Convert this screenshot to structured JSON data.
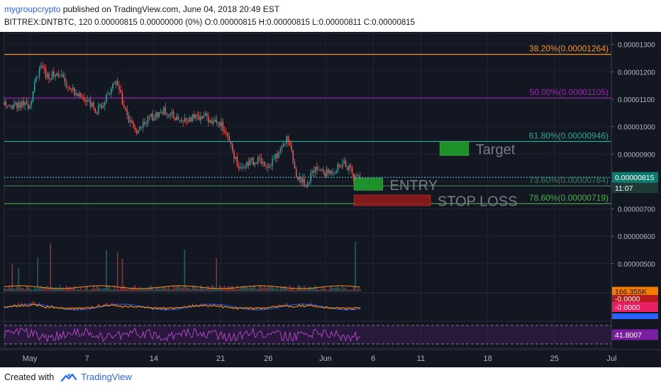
{
  "header": {
    "username": "mygroupcrypto",
    "published_text": " published on TradingView.com, June 04, 2018 20:49 EST",
    "symbol_line": "BITTREX:DNTBTC, 120  0.00000815  0.00000000 (0%)  O:0.00000815  H:0.00000815  L:0.00000811  C:0.00000815"
  },
  "footer": {
    "created_with": "Created with",
    "brand": "TradingView"
  },
  "colors": {
    "background": "#131722",
    "fib_38": "#f7931a",
    "fib_50": "#9c27b0",
    "fib_61": "#26a69a",
    "fib_78": "#4caf50",
    "bull": "#26a69a",
    "bear": "#ef5350",
    "target_zone": "#1e9e2a",
    "entry_zone": "#1e9e2a",
    "stop_zone": "#8e1a1a",
    "price_badge": "#0b7b6e",
    "rsi_badge": "#7b1fa2",
    "volume_badge": "#f57c00",
    "macd_badge": "#e91e63"
  },
  "chart_data": {
    "type": "candlestick",
    "symbol": "BITTREX:DNTBTC",
    "interval": "120",
    "y_axis": {
      "min": 4.4e-06,
      "max": 1.32e-05,
      "ticks": [
        "0.00001300",
        "0.00001200",
        "0.00001100",
        "0.00001000",
        "0.00000900",
        "0.00000800",
        "0.00000700",
        "0.00000600",
        "0.00000500"
      ]
    },
    "x_axis": {
      "labels": [
        "May",
        "7",
        "14",
        "21",
        "26",
        "Jun",
        "6",
        "11",
        "18",
        "25",
        "Jul"
      ]
    },
    "price_path": [
      {
        "date": "May 1",
        "price": 1.08e-05
      },
      {
        "date": "May 2",
        "price": 1.22e-05
      },
      {
        "date": "May 3",
        "price": 1.18e-05
      },
      {
        "date": "May 4",
        "price": 1.2e-05
      },
      {
        "date": "May 5",
        "price": 1.15e-05
      },
      {
        "date": "May 6",
        "price": 1.12e-05
      },
      {
        "date": "May 8",
        "price": 1.06e-05
      },
      {
        "date": "May 9",
        "price": 1.1e-05
      },
      {
        "date": "May 10",
        "price": 1.18e-05
      },
      {
        "date": "May 11",
        "price": 1.05e-05
      },
      {
        "date": "May 12",
        "price": 9.8e-06
      },
      {
        "date": "May 13",
        "price": 1.02e-05
      },
      {
        "date": "May 15",
        "price": 1.06e-05
      },
      {
        "date": "May 17",
        "price": 1.02e-05
      },
      {
        "date": "May 19",
        "price": 1.04e-05
      },
      {
        "date": "May 21",
        "price": 1.01e-05
      },
      {
        "date": "May 22",
        "price": 9.3e-06
      },
      {
        "date": "May 23",
        "price": 8.5e-06
      },
      {
        "date": "May 24",
        "price": 8.7e-06
      },
      {
        "date": "May 25",
        "price": 8.8e-06
      },
      {
        "date": "May 26",
        "price": 8.6e-06
      },
      {
        "date": "May 27",
        "price": 9e-06
      },
      {
        "date": "May 28",
        "price": 9.6e-06
      },
      {
        "date": "May 29",
        "price": 8.2e-06
      },
      {
        "date": "May 30",
        "price": 7.9e-06
      },
      {
        "date": "May 31",
        "price": 8.5e-06
      },
      {
        "date": "Jun 1",
        "price": 8.3e-06
      },
      {
        "date": "Jun 2",
        "price": 8.45e-06
      },
      {
        "date": "Jun 3",
        "price": 8.7e-06
      },
      {
        "date": "Jun 4",
        "price": 8.15e-06
      }
    ],
    "fib_levels": [
      {
        "label": "38.20%(0.00001264)",
        "value": 1.264e-05,
        "color": "#f7931a"
      },
      {
        "label": "50.00%(0.00001105)",
        "value": 1.105e-05,
        "color": "#9c27b0"
      },
      {
        "label": "61.80%(0.00000946)",
        "value": 9.46e-06,
        "color": "#26a69a"
      },
      {
        "label": "73.60%(0.00000784)",
        "value": 7.84e-06,
        "color": "#3d7a5a"
      },
      {
        "label": "78.60%(0.00000719)",
        "value": 7.19e-06,
        "color": "#4caf50"
      }
    ],
    "annotations": [
      {
        "label": "Target",
        "date_from": "Jun 13",
        "date_to": "Jun 16",
        "low": 8.95e-06,
        "high": 9.45e-06,
        "color": "#1e9e2a"
      },
      {
        "label": "ENTRY",
        "date_from": "Jun 4",
        "date_to": "Jun 7",
        "low": 7.68e-06,
        "high": 8.12e-06,
        "color": "#1e9e2a"
      },
      {
        "label": "STOP LOSS",
        "date_from": "Jun 4",
        "date_to": "Jun 12",
        "low": 7.12e-06,
        "high": 7.5e-06,
        "color": "#8e1a1a"
      }
    ],
    "last_price": {
      "value": "0.00000815",
      "countdown": "11:07"
    },
    "indicators": {
      "volume_label": "166.355K",
      "macd_labels": [
        "-0.0000",
        "-0.0000"
      ],
      "rsi_label": "41.8007"
    }
  }
}
